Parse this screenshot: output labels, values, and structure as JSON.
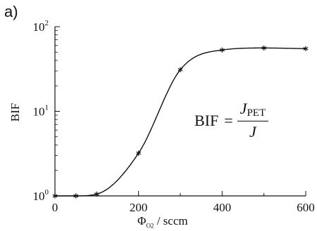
{
  "panel_label": "a)",
  "formula": {
    "lhs": "BIF",
    "eq": "=",
    "num_main": "J",
    "num_sub": "PET",
    "den": "J"
  },
  "chart_data": {
    "type": "line",
    "title": "",
    "xlabel_symbol": "Φ",
    "xlabel_sub": "O2",
    "xlabel_unit": " / sccm",
    "ylabel": "BIF",
    "xlim": [
      0,
      600
    ],
    "ylim": [
      1,
      100
    ],
    "yscale": "log",
    "grid": false,
    "legend": "none",
    "xticks": [
      0,
      200,
      400,
      600
    ],
    "yticks": [
      {
        "value": 1,
        "base": "10",
        "exp": "0"
      },
      {
        "value": 10,
        "base": "10",
        "exp": "1"
      },
      {
        "value": 100,
        "base": "10",
        "exp": "2"
      }
    ],
    "series": [
      {
        "marker": "asterisk",
        "x": [
          0,
          50,
          100,
          200,
          300,
          400,
          500,
          600
        ],
        "y": [
          1.0,
          1.0,
          1.05,
          3.2,
          31,
          53,
          56,
          55
        ]
      }
    ],
    "line_color": "#111111"
  }
}
